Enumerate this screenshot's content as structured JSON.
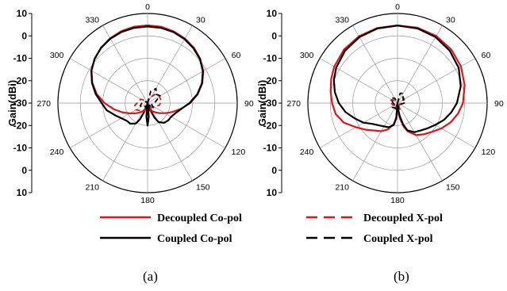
{
  "figure": {
    "panel_labels": [
      "(a)",
      "(b)"
    ],
    "legend_a": [
      "Decoupled Co-pol",
      "Coupled Co-pol"
    ],
    "legend_b": [
      "Decoupled X-pol",
      "Coupled X-pol"
    ],
    "colors": {
      "decoupled": "#e0151b",
      "coupled": "#000000",
      "grid": "#9a9a9a",
      "axis": "#000000"
    }
  },
  "chart_data": [
    {
      "type": "line",
      "polar": true,
      "panel": "(a)",
      "ylabel": "Gain(dBi)",
      "radial_range": [
        -30,
        10
      ],
      "radial_ticks": [
        10,
        0,
        -10,
        -20,
        -30
      ],
      "vertical_axis_labels": [
        "10",
        "0",
        "-10",
        "-20",
        "-30",
        "-20",
        "-10",
        "0",
        "10"
      ],
      "angle_ticks": [
        "0",
        "30",
        "60",
        "90",
        "120",
        "150",
        "180",
        "210",
        "240",
        "270",
        "300",
        "330"
      ],
      "grid": true,
      "series": [
        {
          "name": "Decoupled Co-pol",
          "color": "#e0151b",
          "dash": "solid",
          "angles": [
            0,
            10,
            20,
            30,
            40,
            50,
            60,
            70,
            80,
            90,
            100,
            110,
            120,
            130,
            140,
            150,
            155,
            160,
            165,
            170,
            175,
            180,
            185,
            190,
            195,
            200,
            205,
            210,
            220,
            230,
            240,
            250,
            260,
            270,
            280,
            290,
            300,
            310,
            320,
            330,
            340,
            350
          ],
          "gain": [
            4.7,
            4.6,
            4.1,
            3.3,
            2.2,
            0.7,
            -1.3,
            -4.0,
            -7.3,
            -11.0,
            -15.0,
            -18.3,
            -21.0,
            -23.0,
            -24.6,
            -25.8,
            -26.6,
            -27.6,
            -28.2,
            -29.4,
            -30.0,
            -28.8,
            -30.0,
            -29.4,
            -28.3,
            -27.5,
            -26.6,
            -25.8,
            -24.5,
            -22.9,
            -20.8,
            -18.0,
            -14.6,
            -10.8,
            -7.0,
            -3.8,
            -1.1,
            0.8,
            2.3,
            3.4,
            4.2,
            4.6
          ]
        },
        {
          "name": "Coupled Co-pol",
          "color": "#000000",
          "dash": "solid",
          "angles": [
            0,
            10,
            20,
            30,
            40,
            50,
            60,
            70,
            80,
            90,
            100,
            110,
            120,
            130,
            140,
            150,
            155,
            160,
            165,
            170,
            175,
            180,
            185,
            190,
            195,
            200,
            205,
            210,
            220,
            230,
            240,
            250,
            260,
            270,
            280,
            290,
            300,
            310,
            320,
            330,
            340,
            350
          ],
          "gain": [
            4.2,
            4.1,
            3.7,
            3.0,
            1.9,
            0.5,
            -1.5,
            -4.2,
            -7.5,
            -11.3,
            -14.8,
            -16.8,
            -17.8,
            -18.0,
            -18.5,
            -20.2,
            -23.0,
            -27.0,
            -29.5,
            -30.0,
            -24.0,
            -20.0,
            -24.0,
            -30.0,
            -29.0,
            -26.0,
            -22.0,
            -19.5,
            -18.0,
            -17.8,
            -16.5,
            -14.4,
            -11.5,
            -9.5,
            -6.5,
            -3.6,
            -1.0,
            0.8,
            2.2,
            3.2,
            3.8,
            4.1
          ]
        },
        {
          "name": "Decoupled X-pol",
          "color": "#e0151b",
          "dash": "dashed",
          "angles": [
            0,
            20,
            40,
            60,
            80,
            100,
            120,
            140,
            160,
            180,
            200,
            220,
            240,
            260,
            280,
            300,
            320,
            340
          ],
          "gain": [
            -30,
            -27.5,
            -25.0,
            -24.0,
            -23.8,
            -24.6,
            -26.5,
            -27.5,
            -25.5,
            -30,
            -26.0,
            -25.5,
            -24.0,
            -24.2,
            -26.0,
            -26.5,
            -28.5,
            -30
          ]
        },
        {
          "name": "Coupled X-pol",
          "color": "#000000",
          "dash": "dashed",
          "angles": [
            0,
            15,
            30,
            45,
            60,
            75,
            90,
            110,
            130,
            150,
            170,
            180,
            190,
            210,
            230,
            250,
            270,
            290,
            310,
            330,
            345
          ],
          "gain": [
            -30,
            -24.5,
            -22.5,
            -24.5,
            -23.5,
            -26.0,
            -27.0,
            -28.0,
            -26.5,
            -29.0,
            -26.5,
            -30,
            -27.0,
            -28.5,
            -27.0,
            -26.5,
            -27.5,
            -28.5,
            -29.0,
            -29.5,
            -30
          ]
        }
      ]
    },
    {
      "type": "line",
      "polar": true,
      "panel": "(b)",
      "ylabel": "Gain(dBi)",
      "radial_range": [
        -30,
        10
      ],
      "radial_ticks": [
        10,
        0,
        -10,
        -20,
        -30
      ],
      "vertical_axis_labels": [
        "10",
        "0",
        "-10",
        "-20",
        "-30",
        "-20",
        "-10",
        "0",
        "10"
      ],
      "angle_ticks": [
        "0",
        "30",
        "60",
        "90",
        "120",
        "150",
        "180",
        "210",
        "240",
        "270",
        "300",
        "330"
      ],
      "grid": true,
      "series": [
        {
          "name": "Decoupled Co-pol",
          "color": "#e0151b",
          "dash": "solid",
          "angles": [
            0,
            15,
            30,
            45,
            60,
            75,
            90,
            100,
            110,
            120,
            130,
            140,
            150,
            160,
            165,
            170,
            175,
            180,
            185,
            190,
            200,
            210,
            220,
            230,
            240,
            250,
            260,
            270,
            280,
            290,
            300,
            315,
            330,
            345
          ],
          "gain": [
            4.7,
            4.8,
            4.6,
            3.9,
            2.7,
            1.0,
            -0.8,
            -2.6,
            -4.8,
            -7.4,
            -10.0,
            -11.8,
            -13.5,
            -16.5,
            -19.0,
            -22.5,
            -25.5,
            -29.0,
            -23.5,
            -20.5,
            -17.5,
            -15.5,
            -14.0,
            -11.5,
            -8.5,
            -4.5,
            -2.0,
            -0.8,
            0.3,
            1.5,
            2.6,
            3.8,
            4.4,
            4.7
          ]
        },
        {
          "name": "Coupled Co-pol",
          "color": "#000000",
          "dash": "solid",
          "angles": [
            0,
            15,
            30,
            45,
            60,
            75,
            90,
            100,
            110,
            120,
            130,
            140,
            150,
            160,
            165,
            170,
            175,
            180,
            185,
            190,
            200,
            210,
            220,
            230,
            240,
            250,
            260,
            270,
            280,
            290,
            300,
            315,
            330,
            345
          ],
          "gain": [
            4.6,
            4.5,
            4.0,
            3.0,
            1.5,
            -0.8,
            -3.5,
            -5.7,
            -8.0,
            -10.5,
            -12.5,
            -14.0,
            -15.0,
            -17.0,
            -20.0,
            -24.0,
            -27.5,
            -29.5,
            -23.0,
            -20.0,
            -18.5,
            -18.0,
            -17.0,
            -15.5,
            -12.5,
            -9.8,
            -6.5,
            -3.8,
            -1.6,
            0.2,
            1.6,
            3.1,
            4.0,
            4.5
          ]
        },
        {
          "name": "Decoupled X-pol",
          "color": "#e0151b",
          "dash": "dashed",
          "angles": [
            0,
            20,
            40,
            60,
            80,
            100,
            120,
            140,
            160,
            180,
            200,
            220,
            240,
            260,
            280,
            300,
            320,
            340
          ],
          "gain": [
            -30,
            -28.0,
            -26.5,
            -26.5,
            -27.5,
            -28.0,
            -29.0,
            -28.5,
            -27.0,
            -30,
            -27.5,
            -28.5,
            -28.0,
            -27.5,
            -26.5,
            -27.0,
            -28.5,
            -30
          ]
        },
        {
          "name": "Coupled X-pol",
          "color": "#000000",
          "dash": "dashed",
          "angles": [
            0,
            15,
            30,
            45,
            60,
            75,
            90,
            110,
            130,
            150,
            170,
            180,
            190,
            210,
            230,
            250,
            270,
            290,
            310,
            330,
            345
          ],
          "gain": [
            -30,
            -25.5,
            -25.0,
            -26.5,
            -27.0,
            -28.0,
            -27.0,
            -28.5,
            -28.5,
            -29.0,
            -27.5,
            -30,
            -27.0,
            -27.5,
            -27.0,
            -28.5,
            -28.0,
            -27.5,
            -26.5,
            -27.5,
            -30
          ]
        }
      ]
    }
  ]
}
